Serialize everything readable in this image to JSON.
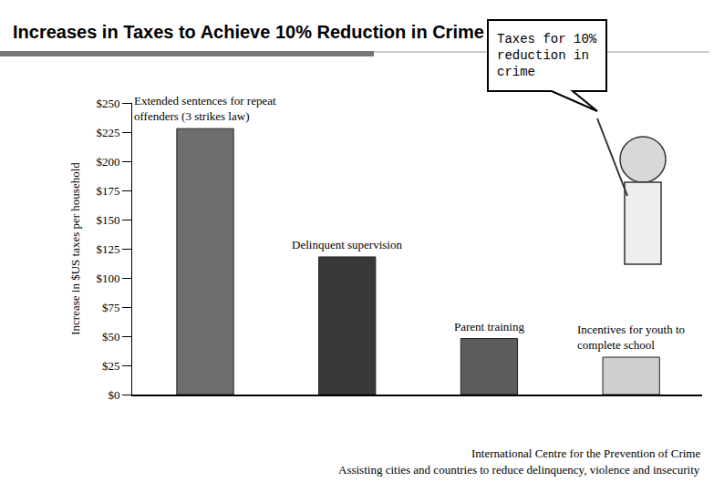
{
  "chart_data": {
    "type": "bar",
    "title": "Increases in Taxes to Achieve 10% Reduction in Crime",
    "y_label": "Increase in $US taxes per household",
    "categories": [
      "Extended sentences for repeat offenders (3 strikes law)",
      "Delinquent supervision",
      "Parent training",
      "Incentives for youth to complete school"
    ],
    "values": [
      228,
      118,
      48,
      32
    ],
    "colors": [
      "#6e6e6e",
      "#383838",
      "#5c5c5c",
      "#cfcfcf"
    ],
    "ylim": [
      0,
      250
    ],
    "yticks": [
      {
        "value": 0,
        "label": "$0"
      },
      {
        "value": 25,
        "label": "$25"
      },
      {
        "value": 50,
        "label": "$50"
      },
      {
        "value": 75,
        "label": "$75"
      },
      {
        "value": 100,
        "label": "$100"
      },
      {
        "value": 125,
        "label": "$125"
      },
      {
        "value": 150,
        "label": "$150"
      },
      {
        "value": 175,
        "label": "$175"
      },
      {
        "value": 200,
        "label": "$200"
      },
      {
        "value": 225,
        "label": "$225"
      },
      {
        "value": 250,
        "label": "$250"
      }
    ],
    "grid": false,
    "tick_labels": "y",
    "annotations": [
      "Taxes for 10% reduction in crime",
      "International Centre for the Prevention of Crime",
      "Assisting cities and countries to reduce delinquency, violence and insecurity"
    ]
  }
}
